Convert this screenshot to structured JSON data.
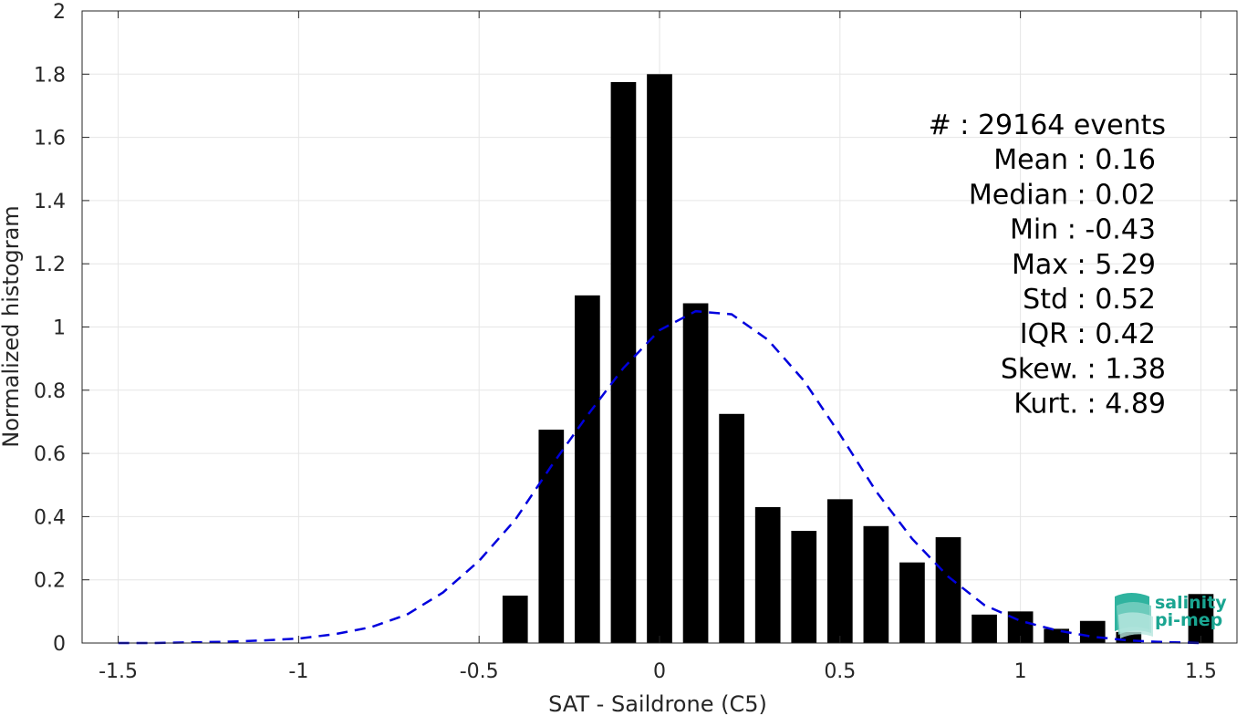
{
  "chart_data": {
    "type": "bar",
    "xlabel": "SAT - Saildrone (C5)",
    "ylabel": "Normalized histogram",
    "xlim": [
      -1.6,
      1.6
    ],
    "ylim": [
      0,
      2
    ],
    "grid": true,
    "xticks": [
      -1.5,
      -1,
      -0.5,
      0,
      0.5,
      1,
      1.5
    ],
    "xtick_labels": [
      "-1.5",
      "-1",
      "-0.5",
      "0",
      "0.5",
      "1",
      "1.5"
    ],
    "yticks": [
      0,
      0.2,
      0.4,
      0.6,
      0.8,
      1,
      1.2,
      1.4,
      1.6,
      1.8,
      2
    ],
    "ytick_labels": [
      "0",
      "0.2",
      "0.4",
      "0.6",
      "0.8",
      "1",
      "1.2",
      "1.4",
      "1.6",
      "1.8",
      "2"
    ],
    "bar_color": "#000000",
    "bars": {
      "x": [
        -0.4,
        -0.3,
        -0.2,
        -0.1,
        0.0,
        0.1,
        0.2,
        0.3,
        0.4,
        0.5,
        0.6,
        0.7,
        0.8,
        0.9,
        1.0,
        1.1,
        1.2,
        1.3,
        1.5
      ],
      "values": [
        0.15,
        0.675,
        1.1,
        1.775,
        1.8,
        1.075,
        0.725,
        0.43,
        0.355,
        0.455,
        0.37,
        0.255,
        0.335,
        0.09,
        0.1,
        0.045,
        0.07,
        0.035,
        0.155
      ]
    },
    "fit_curve": {
      "style": "dashed",
      "color": "#0000dd",
      "x": [
        -1.5,
        -1.4,
        -1.3,
        -1.2,
        -1.1,
        -1.0,
        -0.9,
        -0.8,
        -0.7,
        -0.6,
        -0.5,
        -0.4,
        -0.3,
        -0.2,
        -0.1,
        0.0,
        0.1,
        0.2,
        0.3,
        0.4,
        0.5,
        0.6,
        0.7,
        0.8,
        0.9,
        1.0,
        1.1,
        1.2,
        1.3,
        1.4,
        1.5
      ],
      "y": [
        0.0,
        0.0,
        0.002,
        0.004,
        0.008,
        0.014,
        0.028,
        0.05,
        0.09,
        0.16,
        0.26,
        0.39,
        0.56,
        0.72,
        0.87,
        0.99,
        1.05,
        1.04,
        0.96,
        0.83,
        0.66,
        0.48,
        0.33,
        0.21,
        0.12,
        0.07,
        0.04,
        0.02,
        0.008,
        0.003,
        0.0
      ]
    },
    "annotations": [
      "#  : 29164 events",
      "Mean : 0.16",
      "Median : 0.02",
      "Min : -0.43",
      "Max : 5.29",
      "Std : 0.52",
      "IQR : 0.42",
      "Skew. : 1.38",
      "Kurt. : 4.89"
    ]
  },
  "logo": {
    "line1": "salinity",
    "line2": "pi-mep",
    "color": "#1aa591"
  }
}
